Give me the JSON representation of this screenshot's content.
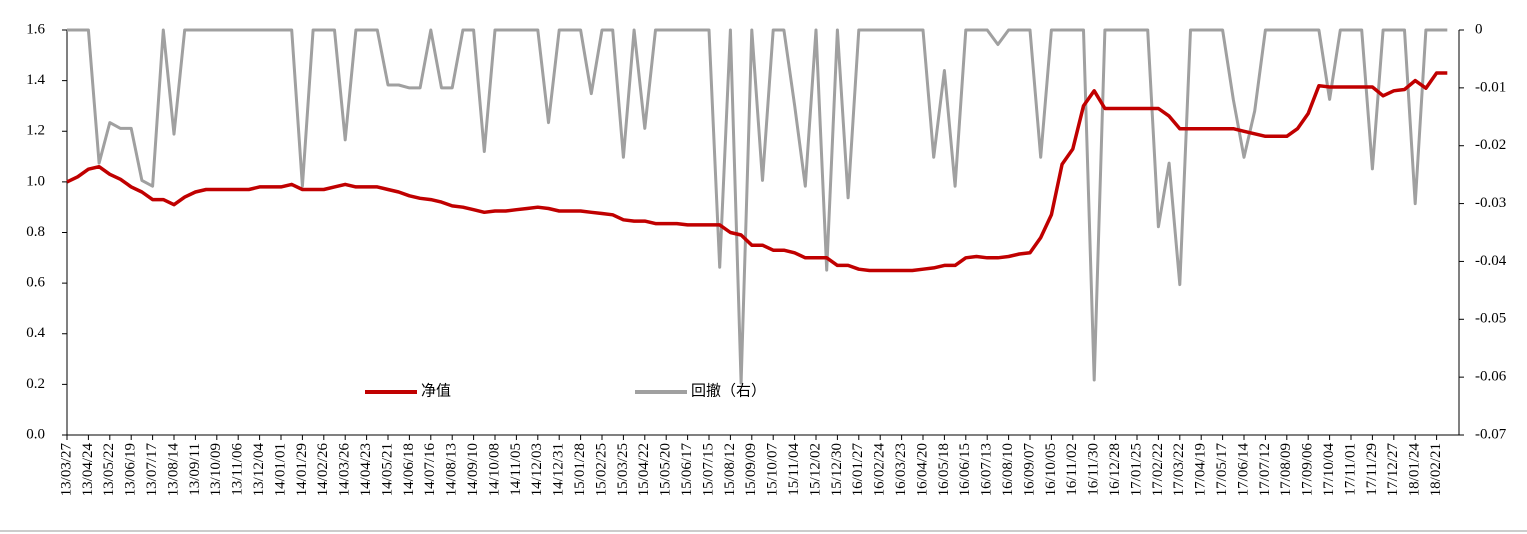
{
  "chart_data": {
    "type": "line",
    "categories": [
      "13/03/27",
      null,
      "13/04/24",
      null,
      "13/05/22",
      null,
      "13/06/19",
      null,
      "13/07/17",
      null,
      "13/08/14",
      null,
      "13/09/11",
      null,
      "13/10/09",
      null,
      "13/11/06",
      null,
      "13/12/04",
      null,
      "14/01/01",
      null,
      "14/01/29",
      null,
      "14/02/26",
      null,
      "14/03/26",
      null,
      "14/04/23",
      null,
      "14/05/21",
      null,
      "14/06/18",
      null,
      "14/07/16",
      null,
      "14/08/13",
      null,
      "14/09/10",
      null,
      "14/10/08",
      null,
      "14/11/05",
      null,
      "14/12/03",
      null,
      "14/12/31",
      null,
      "15/01/28",
      null,
      "15/02/25",
      null,
      "15/03/25",
      null,
      "15/04/22",
      null,
      "15/05/20",
      null,
      "15/06/17",
      null,
      "15/07/15",
      null,
      "15/08/12",
      null,
      "15/09/09",
      null,
      "15/10/07",
      null,
      "15/11/04",
      null,
      "15/12/02",
      null,
      "15/12/30",
      null,
      "16/01/27",
      null,
      "16/02/24",
      null,
      "16/03/23",
      null,
      "16/04/20",
      null,
      "16/05/18",
      null,
      "16/06/15",
      null,
      "16/07/13",
      null,
      "16/08/10",
      null,
      "16/09/07",
      null,
      "16/10/05",
      null,
      "16/11/02",
      null,
      "16/11/30",
      null,
      "16/12/28",
      null,
      "17/01/25",
      null,
      "17/02/22",
      null,
      "17/03/22",
      null,
      "17/04/19",
      null,
      "17/05/17",
      null,
      "17/06/14",
      null,
      "17/07/12",
      null,
      "17/08/09",
      null,
      "17/09/06",
      null,
      "17/10/04",
      null,
      "17/11/01",
      null,
      "17/11/29",
      null,
      "17/12/27",
      null,
      "18/01/24",
      null,
      "18/02/21",
      null
    ],
    "series": [
      {
        "name": "净值",
        "color": "#c00000",
        "values": [
          1.0,
          1.02,
          1.05,
          1.06,
          1.03,
          1.01,
          0.98,
          0.96,
          0.93,
          0.93,
          0.91,
          0.94,
          0.96,
          0.97,
          0.97,
          0.97,
          0.97,
          0.97,
          0.98,
          0.98,
          0.98,
          0.99,
          0.97,
          0.97,
          0.97,
          0.98,
          0.99,
          0.98,
          0.98,
          0.98,
          0.97,
          0.96,
          0.945,
          0.935,
          0.93,
          0.92,
          0.905,
          0.9,
          0.89,
          0.88,
          0.885,
          0.885,
          0.89,
          0.895,
          0.9,
          0.895,
          0.885,
          0.885,
          0.885,
          0.88,
          0.875,
          0.87,
          0.85,
          0.845,
          0.845,
          0.835,
          0.835,
          0.835,
          0.83,
          0.83,
          0.83,
          0.83,
          0.8,
          0.79,
          0.75,
          0.75,
          0.73,
          0.73,
          0.72,
          0.7,
          0.7,
          0.7,
          0.67,
          0.67,
          0.655,
          0.65,
          0.65,
          0.65,
          0.65,
          0.65,
          0.655,
          0.66,
          0.67,
          0.67,
          0.7,
          0.705,
          0.7,
          0.7,
          0.705,
          0.715,
          0.72,
          0.78,
          0.87,
          1.07,
          1.13,
          1.3,
          1.36,
          1.29,
          1.29,
          1.29,
          1.29,
          1.29,
          1.29,
          1.26,
          1.21,
          1.21,
          1.21,
          1.21,
          1.21,
          1.21,
          1.2,
          1.19,
          1.18,
          1.18,
          1.18,
          1.21,
          1.27,
          1.38,
          1.375,
          1.375,
          1.375,
          1.375,
          1.375,
          1.34,
          1.36,
          1.365,
          1.4,
          1.37,
          1.43,
          1.43
        ]
      },
      {
        "name": "回撤（右）",
        "color": "#a0a0a0",
        "axis": "y2",
        "values": [
          0,
          0,
          0,
          -0.023,
          -0.016,
          -0.017,
          -0.017,
          -0.026,
          -0.027,
          0,
          -0.018,
          0,
          0,
          0,
          0,
          0,
          0,
          0,
          0,
          0,
          0,
          0,
          -0.027,
          0,
          0,
          0,
          -0.019,
          0,
          0,
          0,
          -0.0095,
          -0.0095,
          -0.01,
          -0.01,
          0,
          -0.01,
          -0.01,
          0,
          0,
          -0.021,
          0,
          0,
          0,
          0,
          0,
          -0.016,
          0,
          0,
          0,
          -0.011,
          0,
          0,
          -0.022,
          0,
          -0.017,
          0,
          0,
          0,
          0,
          0,
          0,
          -0.041,
          0,
          -0.061,
          0,
          -0.026,
          0,
          0,
          -0.013,
          -0.027,
          0,
          -0.0415,
          0,
          -0.029,
          0,
          0,
          0,
          0,
          0,
          0,
          0,
          -0.022,
          -0.007,
          -0.027,
          0,
          0,
          0,
          -0.0025,
          0,
          0,
          0,
          -0.022,
          0,
          0,
          0,
          0,
          -0.0605,
          0,
          0,
          0,
          0,
          0,
          -0.034,
          -0.023,
          -0.044,
          0,
          0,
          0,
          0,
          -0.012,
          -0.022,
          -0.014,
          0,
          0,
          0,
          0,
          0,
          0,
          -0.012,
          0,
          0,
          0,
          -0.024,
          0,
          0,
          0,
          -0.03,
          0,
          0,
          0
        ]
      }
    ],
    "ylim": [
      0,
      1.6
    ],
    "yticks": [
      {
        "value": 0,
        "label": "0.0"
      },
      {
        "value": 0.2,
        "label": "0.2"
      },
      {
        "value": 0.4,
        "label": "0.4"
      },
      {
        "value": 0.6,
        "label": "0.6"
      },
      {
        "value": 0.8,
        "label": "0.8"
      },
      {
        "value": 1.0,
        "label": "1.0"
      },
      {
        "value": 1.2,
        "label": "1.2"
      },
      {
        "value": 1.4,
        "label": "1.4"
      },
      {
        "value": 1.6,
        "label": "1.6"
      }
    ],
    "y2lim": [
      -0.07,
      0
    ],
    "y2ticks": [
      0,
      -0.01,
      -0.02,
      -0.03,
      -0.04,
      -0.05,
      -0.06,
      -0.07
    ],
    "legend": "bottom"
  }
}
